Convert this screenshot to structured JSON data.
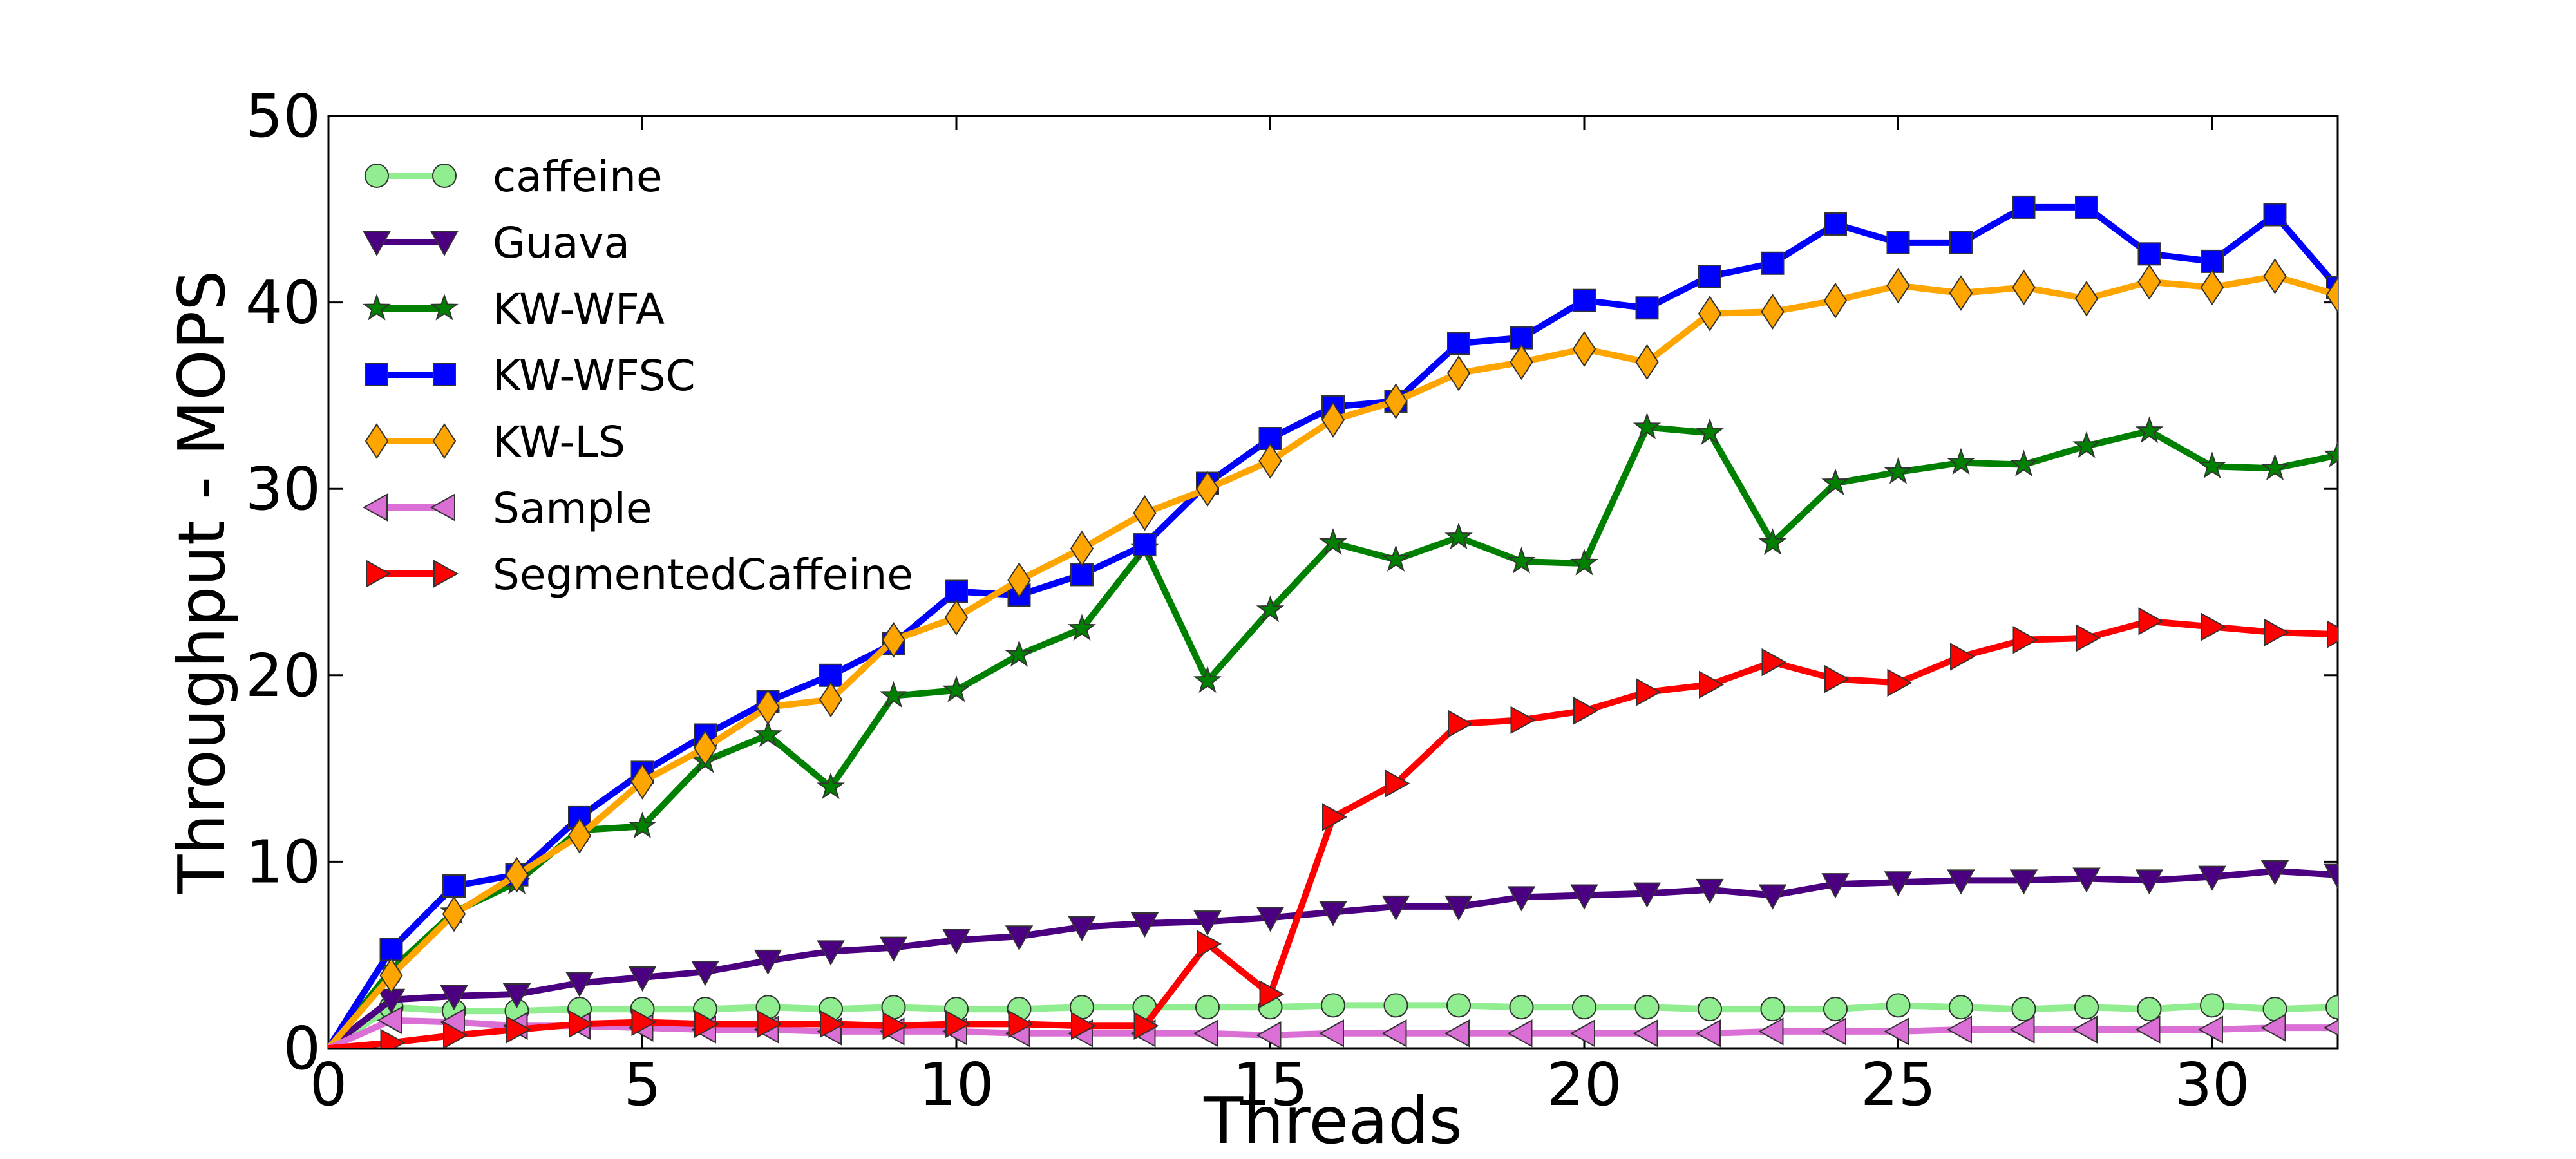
{
  "chart_data": {
    "type": "line",
    "xlabel": "Threads",
    "ylabel": "Throughput - MOPS",
    "xlim": [
      0,
      32
    ],
    "ylim": [
      0,
      50
    ],
    "xticks": [
      0,
      5,
      10,
      15,
      20,
      25,
      30
    ],
    "yticks": [
      0,
      10,
      20,
      30,
      40,
      50
    ],
    "grid": false,
    "legend_position": "top-left",
    "x": [
      0,
      1,
      2,
      3,
      4,
      5,
      6,
      7,
      8,
      9,
      10,
      11,
      12,
      13,
      14,
      15,
      16,
      17,
      18,
      19,
      20,
      21,
      22,
      23,
      24,
      25,
      26,
      27,
      28,
      29,
      30,
      31,
      32
    ],
    "series": [
      {
        "name": "caffeine",
        "color": "#90ee90",
        "marker": "circle",
        "values": [
          0,
          2.2,
          2.0,
          2.0,
          2.1,
          2.1,
          2.1,
          2.2,
          2.1,
          2.2,
          2.1,
          2.1,
          2.2,
          2.2,
          2.2,
          2.2,
          2.3,
          2.3,
          2.3,
          2.2,
          2.2,
          2.2,
          2.1,
          2.1,
          2.1,
          2.3,
          2.2,
          2.1,
          2.2,
          2.1,
          2.3,
          2.1,
          2.2
        ]
      },
      {
        "name": "Guava",
        "color": "#4b0082",
        "marker": "triangle-down",
        "values": [
          0,
          2.6,
          2.8,
          2.9,
          3.5,
          3.8,
          4.1,
          4.7,
          5.2,
          5.4,
          5.8,
          6.0,
          6.5,
          6.7,
          6.8,
          7.0,
          7.3,
          7.6,
          7.6,
          8.1,
          8.2,
          8.3,
          8.5,
          8.2,
          8.8,
          8.9,
          9.0,
          9.0,
          9.1,
          9.0,
          9.2,
          9.5,
          9.3
        ]
      },
      {
        "name": "KW-WFA",
        "color": "#008000",
        "marker": "star",
        "values": [
          0,
          4.2,
          7.3,
          8.9,
          11.7,
          11.9,
          15.4,
          16.8,
          14.0,
          18.9,
          19.2,
          21.1,
          22.5,
          26.8,
          19.7,
          23.5,
          27.1,
          26.2,
          27.4,
          26.1,
          26.0,
          33.3,
          33.0,
          27.1,
          30.3,
          30.9,
          31.4,
          31.3,
          32.3,
          33.1,
          31.2,
          31.1,
          31.8
        ]
      },
      {
        "name": "KW-WFSC",
        "color": "#0000ff",
        "marker": "square",
        "values": [
          0,
          5.3,
          8.7,
          9.3,
          12.4,
          14.8,
          16.8,
          18.6,
          20.0,
          21.7,
          24.5,
          24.3,
          25.4,
          27.0,
          30.3,
          32.7,
          34.4,
          34.7,
          37.8,
          38.1,
          40.1,
          39.7,
          41.4,
          42.1,
          44.2,
          43.2,
          43.2,
          45.1,
          45.1,
          42.6,
          42.2,
          44.7,
          40.8
        ]
      },
      {
        "name": "KW-LS",
        "color": "#ffa500",
        "marker": "diamond",
        "values": [
          0,
          3.9,
          7.2,
          9.3,
          11.4,
          14.3,
          16.1,
          18.3,
          18.7,
          21.9,
          23.1,
          25.1,
          26.8,
          28.7,
          30.0,
          31.5,
          33.7,
          34.7,
          36.2,
          36.8,
          37.5,
          36.8,
          39.4,
          39.5,
          40.1,
          40.9,
          40.5,
          40.8,
          40.2,
          41.1,
          40.8,
          41.4,
          40.4
        ]
      },
      {
        "name": "Sample",
        "color": "#da70d6",
        "marker": "triangle-left",
        "values": [
          0,
          1.5,
          1.4,
          1.2,
          1.2,
          1.1,
          1.0,
          1.0,
          0.9,
          0.9,
          0.9,
          0.8,
          0.8,
          0.8,
          0.8,
          0.7,
          0.8,
          0.8,
          0.8,
          0.8,
          0.8,
          0.8,
          0.8,
          0.9,
          0.9,
          0.9,
          1.0,
          1.0,
          1.0,
          1.0,
          1.0,
          1.1,
          1.1
        ]
      },
      {
        "name": "SegmentedCaffeine",
        "color": "#ff0000",
        "marker": "triangle-right",
        "values": [
          0,
          0.3,
          0.7,
          1.0,
          1.3,
          1.4,
          1.3,
          1.3,
          1.3,
          1.2,
          1.3,
          1.3,
          1.2,
          1.2,
          5.6,
          2.9,
          12.4,
          14.2,
          17.4,
          17.6,
          18.1,
          19.1,
          19.5,
          20.7,
          19.8,
          19.6,
          21.0,
          21.9,
          22.0,
          22.9,
          22.6,
          22.3,
          22.2
        ]
      }
    ]
  }
}
